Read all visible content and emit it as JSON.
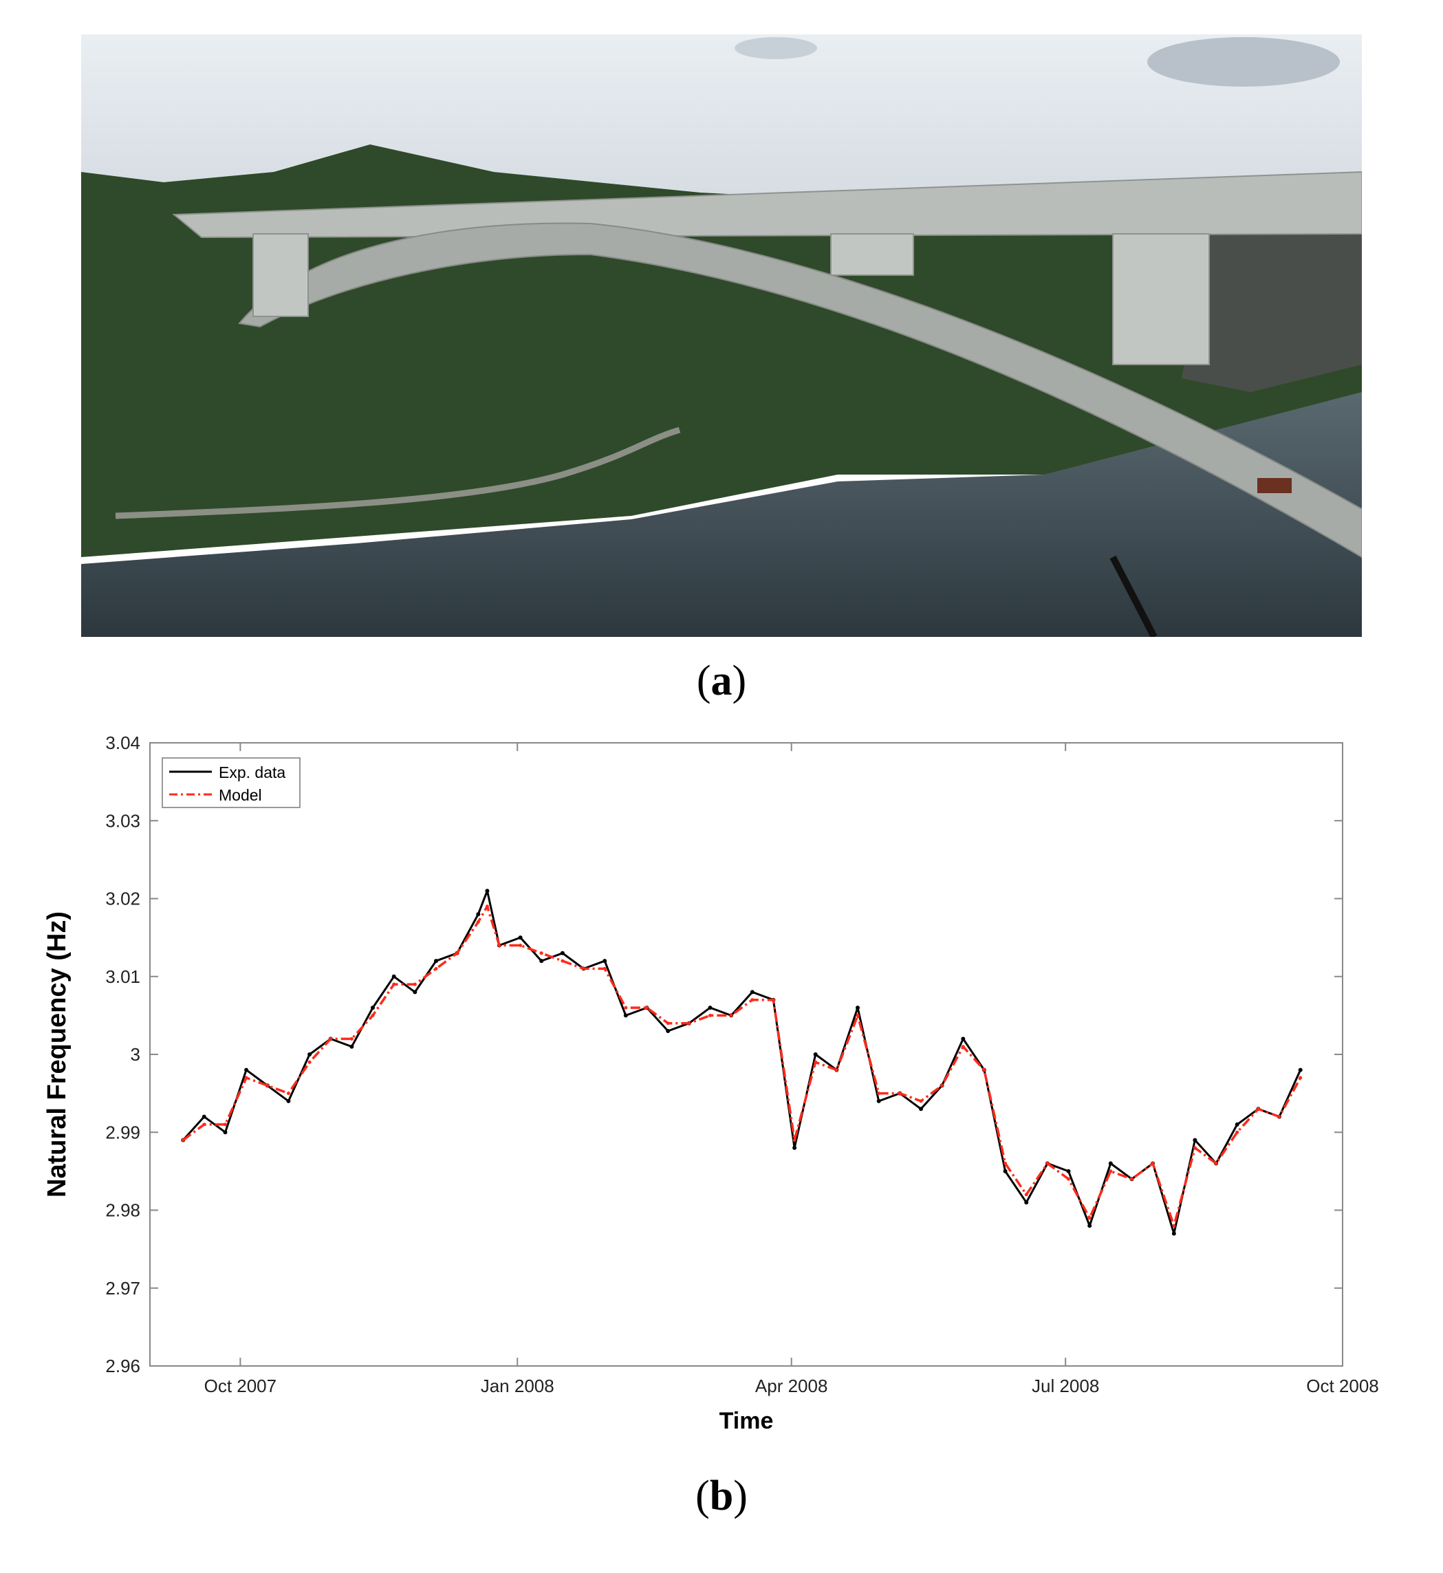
{
  "figure": {
    "panel_a_label": "a",
    "panel_b_label": "b"
  },
  "photo": {
    "description_icon": "bridge-photo",
    "colors": {
      "sky": "#dfe6ec",
      "hill": "#2f4a2a",
      "river": "#3e4c53",
      "bridge": "#b9bdba"
    }
  },
  "chart_data": {
    "type": "line",
    "title": "",
    "xlabel": "Time",
    "ylabel": "Natural Frequency (Hz)",
    "ylim": [
      2.96,
      3.04
    ],
    "yticks": [
      "2.96",
      "2.97",
      "2.98",
      "2.99",
      "3",
      "3.01",
      "3.02",
      "3.03",
      "3.04"
    ],
    "xlim": [
      "2007-09-01",
      "2008-10-01"
    ],
    "xticks": [
      {
        "date": "2007-10-01",
        "label": "Oct 2007"
      },
      {
        "date": "2008-01-01",
        "label": "Jan 2008"
      },
      {
        "date": "2008-04-01",
        "label": "Apr 2008"
      },
      {
        "date": "2008-07-01",
        "label": "Jul 2008"
      },
      {
        "date": "2008-10-01",
        "label": "Oct 2008"
      }
    ],
    "legend_position": "top-left",
    "grid": false,
    "series": [
      {
        "name": "Exp. data",
        "color": "#000000",
        "style": "solid",
        "x": [
          "2007-09-12",
          "2007-09-19",
          "2007-09-26",
          "2007-10-03",
          "2007-10-10",
          "2007-10-17",
          "2007-10-24",
          "2007-10-31",
          "2007-11-07",
          "2007-11-14",
          "2007-11-21",
          "2007-11-28",
          "2007-12-05",
          "2007-12-12",
          "2007-12-19",
          "2007-12-22",
          "2007-12-26",
          "2008-01-02",
          "2008-01-09",
          "2008-01-16",
          "2008-01-23",
          "2008-01-30",
          "2008-02-06",
          "2008-02-13",
          "2008-02-20",
          "2008-02-27",
          "2008-03-05",
          "2008-03-12",
          "2008-03-19",
          "2008-03-26",
          "2008-04-02",
          "2008-04-09",
          "2008-04-16",
          "2008-04-23",
          "2008-04-30",
          "2008-05-07",
          "2008-05-14",
          "2008-05-21",
          "2008-05-28",
          "2008-06-04",
          "2008-06-11",
          "2008-06-18",
          "2008-06-25",
          "2008-07-02",
          "2008-07-09",
          "2008-07-16",
          "2008-07-23",
          "2008-07-30",
          "2008-08-06",
          "2008-08-13",
          "2008-08-20",
          "2008-08-27",
          "2008-09-03",
          "2008-09-10",
          "2008-09-17"
        ],
        "y": [
          2.989,
          2.992,
          2.99,
          2.998,
          2.996,
          2.994,
          3.0,
          3.002,
          3.001,
          3.006,
          3.01,
          3.008,
          3.012,
          3.013,
          3.018,
          3.021,
          3.014,
          3.015,
          3.012,
          3.013,
          3.011,
          3.012,
          3.005,
          3.006,
          3.003,
          3.004,
          3.006,
          3.005,
          3.008,
          3.007,
          2.988,
          3.0,
          2.998,
          3.006,
          2.994,
          2.995,
          2.993,
          2.996,
          3.002,
          2.998,
          2.985,
          2.981,
          2.986,
          2.985,
          2.978,
          2.986,
          2.984,
          2.986,
          2.977,
          2.989,
          2.986,
          2.991,
          2.993,
          2.992,
          2.998
        ]
      },
      {
        "name": "Model",
        "color": "#ff2a1a",
        "style": "dashdot",
        "x": [
          "2007-09-12",
          "2007-09-19",
          "2007-09-26",
          "2007-10-03",
          "2007-10-10",
          "2007-10-17",
          "2007-10-24",
          "2007-10-31",
          "2007-11-07",
          "2007-11-14",
          "2007-11-21",
          "2007-11-28",
          "2007-12-05",
          "2007-12-12",
          "2007-12-19",
          "2007-12-22",
          "2007-12-26",
          "2008-01-02",
          "2008-01-09",
          "2008-01-16",
          "2008-01-23",
          "2008-01-30",
          "2008-02-06",
          "2008-02-13",
          "2008-02-20",
          "2008-02-27",
          "2008-03-05",
          "2008-03-12",
          "2008-03-19",
          "2008-03-26",
          "2008-04-02",
          "2008-04-09",
          "2008-04-16",
          "2008-04-23",
          "2008-04-30",
          "2008-05-07",
          "2008-05-14",
          "2008-05-21",
          "2008-05-28",
          "2008-06-04",
          "2008-06-11",
          "2008-06-18",
          "2008-06-25",
          "2008-07-02",
          "2008-07-09",
          "2008-07-16",
          "2008-07-23",
          "2008-07-30",
          "2008-08-06",
          "2008-08-13",
          "2008-08-20",
          "2008-08-27",
          "2008-09-03",
          "2008-09-10",
          "2008-09-17"
        ],
        "y": [
          2.989,
          2.991,
          2.991,
          2.997,
          2.996,
          2.995,
          2.999,
          3.002,
          3.002,
          3.005,
          3.009,
          3.009,
          3.011,
          3.013,
          3.017,
          3.019,
          3.014,
          3.014,
          3.013,
          3.012,
          3.011,
          3.011,
          3.006,
          3.006,
          3.004,
          3.004,
          3.005,
          3.005,
          3.007,
          3.007,
          2.989,
          2.999,
          2.998,
          3.005,
          2.995,
          2.995,
          2.994,
          2.996,
          3.001,
          2.998,
          2.986,
          2.982,
          2.986,
          2.984,
          2.979,
          2.985,
          2.984,
          2.986,
          2.978,
          2.988,
          2.986,
          2.99,
          2.993,
          2.992,
          2.997
        ]
      }
    ]
  }
}
